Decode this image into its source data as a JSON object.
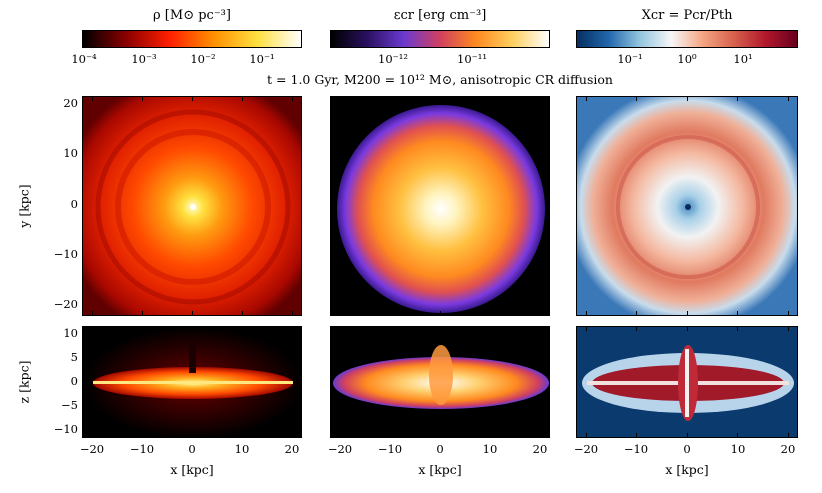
{
  "colorbars": [
    {
      "label": "ρ [M⊙ pc⁻³]",
      "ticks": [
        "10⁻⁴",
        "10⁻³",
        "10⁻²",
        "10⁻¹"
      ],
      "colormap": "hot",
      "colors": [
        "#000000",
        "#8b0000",
        "#ff2000",
        "#ff9000",
        "#ffe040",
        "#ffffff"
      ]
    },
    {
      "label": "εcr [erg cm⁻³]",
      "ticks": [
        "10⁻¹²",
        "10⁻¹¹"
      ],
      "colormap": "cmr-flame",
      "colors": [
        "#000000",
        "#2a1060",
        "#6a3ad0",
        "#d04060",
        "#ff8a20",
        "#ffd060",
        "#ffffff"
      ]
    },
    {
      "label": "Xcr = Pcr/Pth",
      "ticks": [
        "10⁻¹",
        "10⁰",
        "10¹"
      ],
      "colormap": "RdBu_r",
      "colors": [
        "#053061",
        "#2166ac",
        "#92c5de",
        "#f7f7f7",
        "#f4a582",
        "#d6604d",
        "#b2182b",
        "#67001f"
      ]
    }
  ],
  "caption": "t = 1.0 Gyr, M200 = 10¹² M⊙, anisotropic CR diffusion",
  "axes": {
    "y_label": "y [kpc]",
    "z_label": "z [kpc]",
    "x_label": "x [kpc]",
    "y_ticks": [
      "20",
      "10",
      "0",
      "−10",
      "−20"
    ],
    "z_ticks": [
      "10",
      "5",
      "0",
      "−5",
      "−10"
    ],
    "x_ticks": [
      "−20",
      "−10",
      "0",
      "10",
      "20"
    ]
  }
}
